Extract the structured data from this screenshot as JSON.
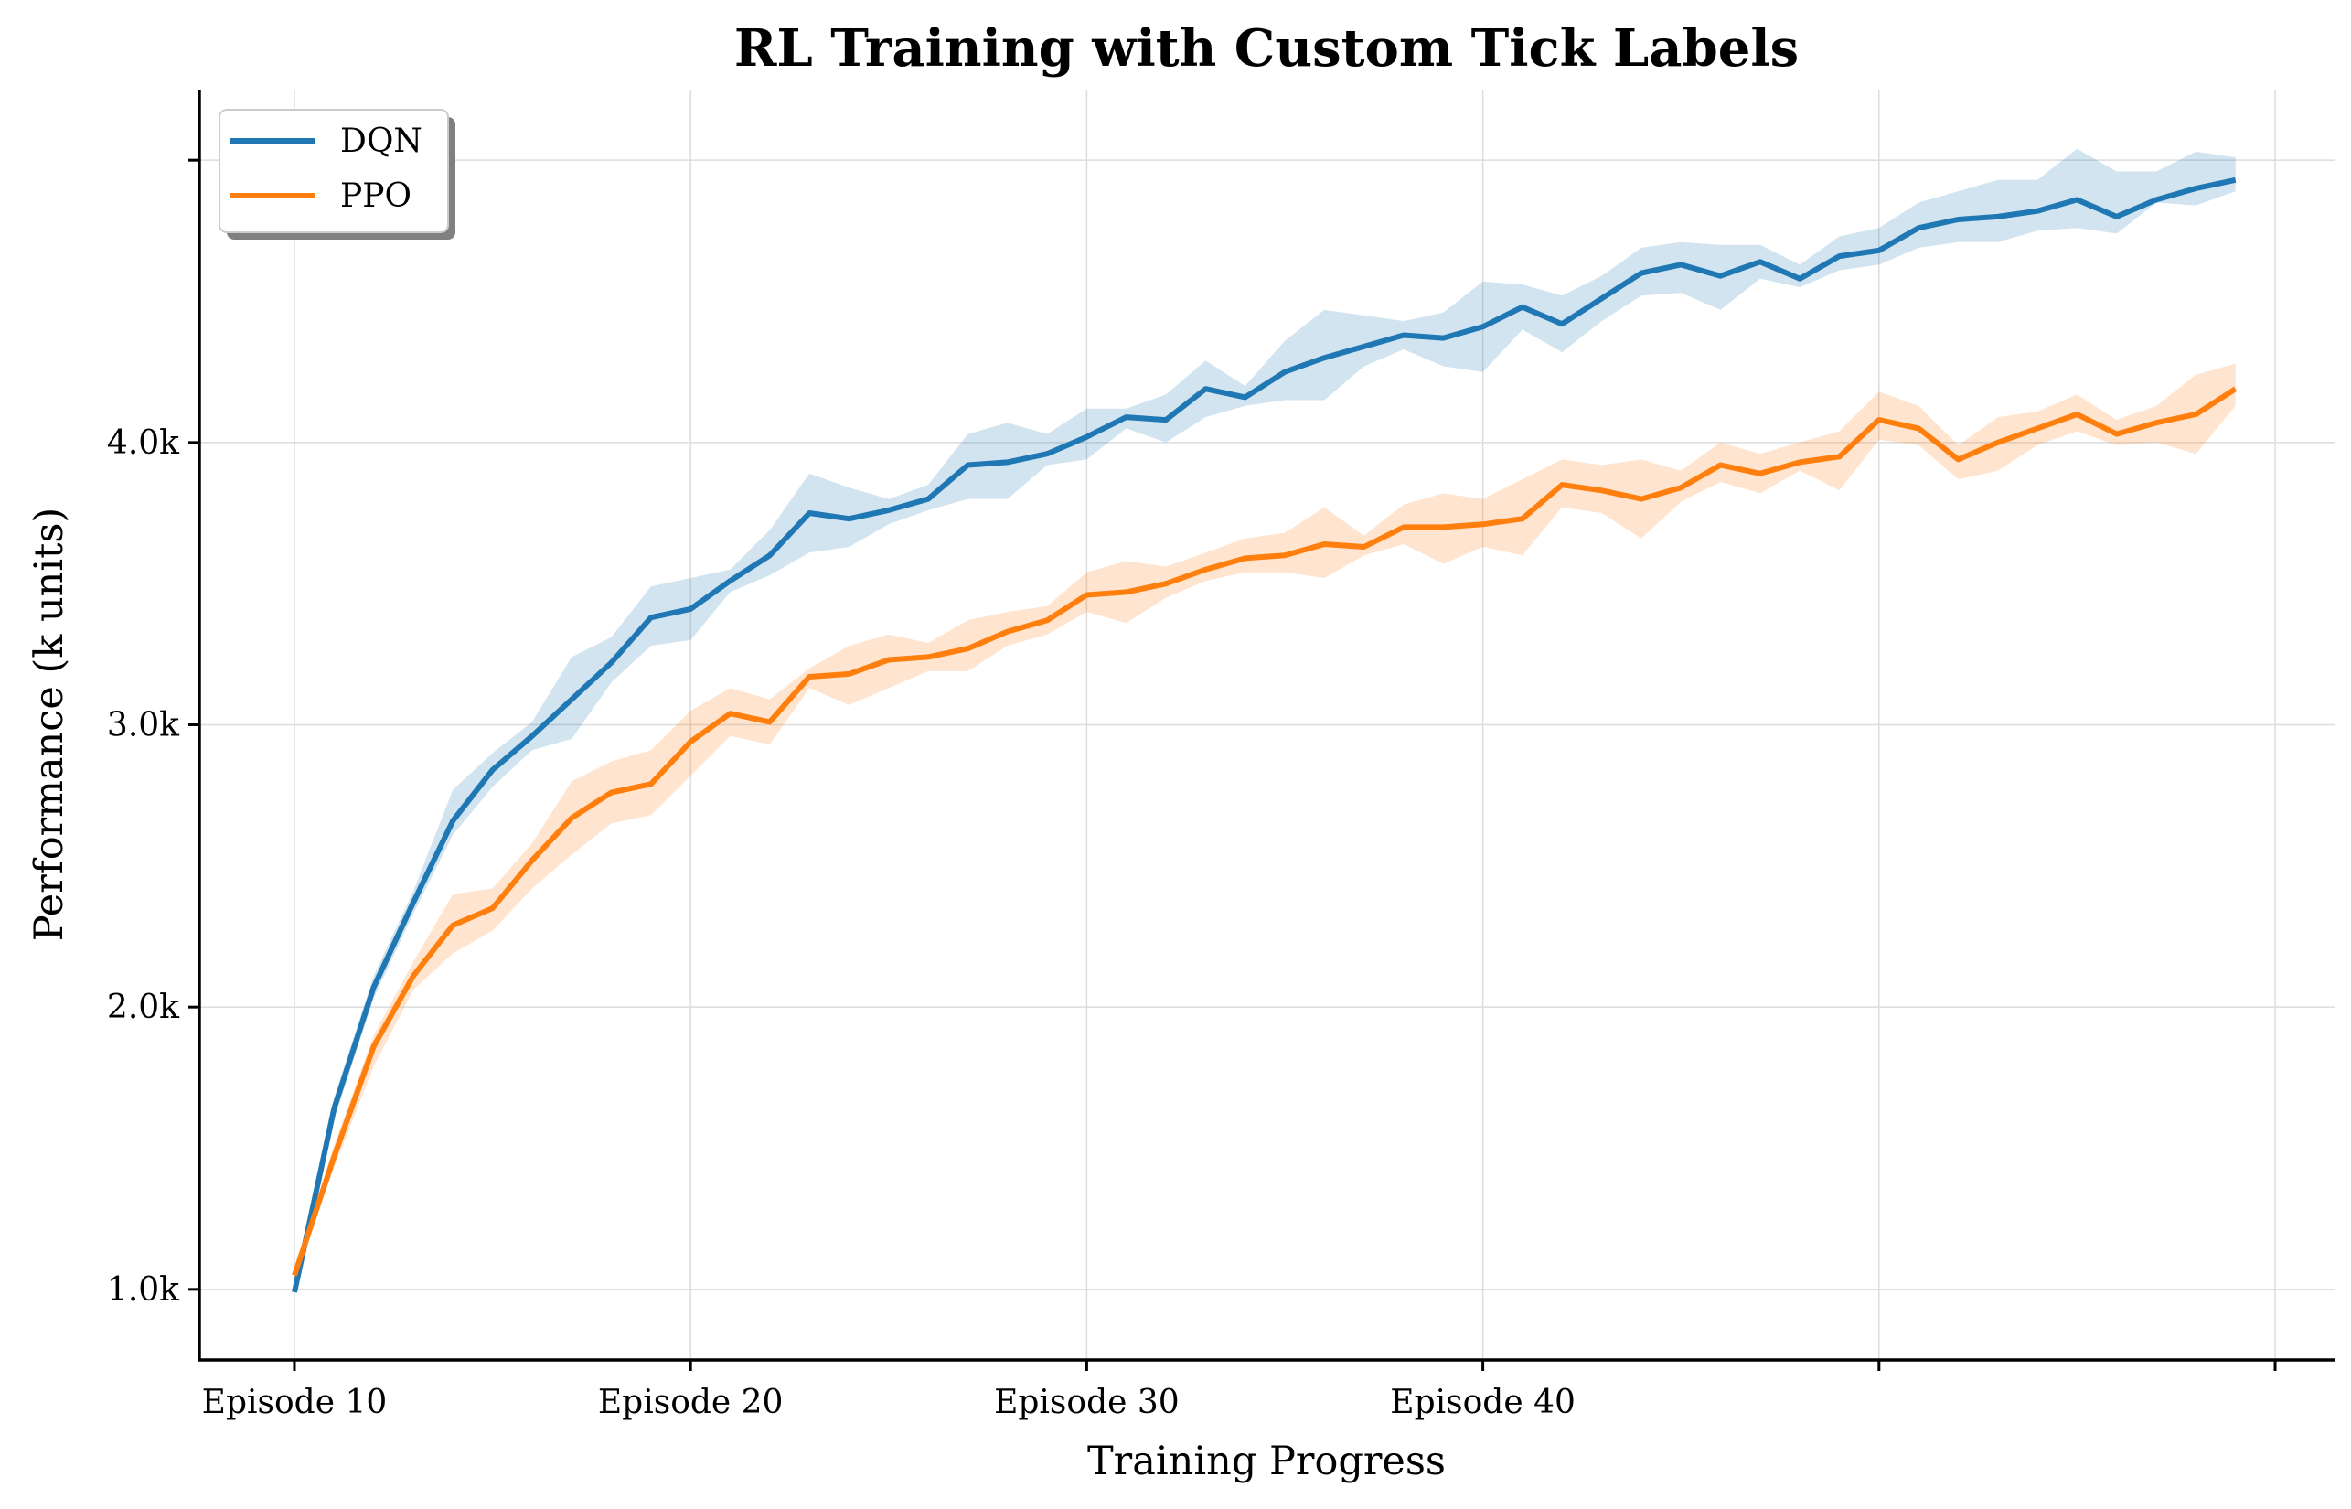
{
  "chart_data": {
    "type": "line",
    "title": "RL Training with Custom Tick Labels",
    "xlabel": "Training Progress",
    "ylabel": "Performance (k units)",
    "x_ticks": [
      {
        "value": 10,
        "label": "Episode 10"
      },
      {
        "value": 20,
        "label": "Episode 20"
      },
      {
        "value": 30,
        "label": "Episode 30"
      },
      {
        "value": 40,
        "label": "Episode 40"
      },
      {
        "value": 50,
        "label": ""
      },
      {
        "value": 60,
        "label": ""
      }
    ],
    "y_ticks": [
      {
        "value": 1000,
        "label": "1.0k"
      },
      {
        "value": 2000,
        "label": "2.0k"
      },
      {
        "value": 3000,
        "label": "3.0k"
      },
      {
        "value": 4000,
        "label": "4.0k"
      },
      {
        "value": 5000,
        "label": ""
      }
    ],
    "xlim": [
      7.6,
      61.5
    ],
    "ylim": [
      750,
      5250
    ],
    "grid": true,
    "legend_position": "top-left",
    "x": [
      10,
      11,
      12,
      13,
      14,
      15,
      16,
      17,
      18,
      19,
      20,
      21,
      22,
      23,
      24,
      25,
      26,
      27,
      28,
      29,
      30,
      31,
      32,
      33,
      34,
      35,
      36,
      37,
      38,
      39,
      40,
      41,
      42,
      43,
      44,
      45,
      46,
      47,
      48,
      49,
      50,
      51,
      52,
      53,
      54,
      55,
      56,
      57,
      58,
      59
    ],
    "series": [
      {
        "name": "DQN",
        "color": "#1f77b4",
        "values": [
          990,
          1640,
          2070,
          2370,
          2660,
          2840,
          2960,
          3090,
          3220,
          3380,
          3410,
          3510,
          3600,
          3750,
          3730,
          3760,
          3800,
          3920,
          3930,
          3960,
          4020,
          4090,
          4080,
          4190,
          4160,
          4250,
          4300,
          4340,
          4380,
          4370,
          4410,
          4480,
          4420,
          4510,
          4600,
          4630,
          4590,
          4640,
          4580,
          4660,
          4680,
          4760,
          4790,
          4800,
          4820,
          4860,
          4800,
          4860,
          4900,
          4930
        ],
        "band_lower": [
          980,
          1600,
          2030,
          2330,
          2610,
          2780,
          2910,
          2950,
          3150,
          3280,
          3300,
          3470,
          3530,
          3610,
          3630,
          3710,
          3760,
          3800,
          3800,
          3920,
          3940,
          4050,
          4000,
          4090,
          4130,
          4150,
          4150,
          4270,
          4330,
          4270,
          4250,
          4400,
          4320,
          4430,
          4520,
          4530,
          4470,
          4580,
          4550,
          4610,
          4630,
          4690,
          4710,
          4710,
          4750,
          4760,
          4740,
          4850,
          4840,
          4890
        ],
        "band_upper": [
          1000,
          1680,
          2110,
          2410,
          2770,
          2900,
          3010,
          3240,
          3310,
          3490,
          3520,
          3550,
          3690,
          3890,
          3840,
          3800,
          3850,
          4030,
          4070,
          4030,
          4120,
          4120,
          4170,
          4290,
          4200,
          4360,
          4470,
          4450,
          4430,
          4460,
          4570,
          4560,
          4520,
          4590,
          4690,
          4710,
          4700,
          4700,
          4630,
          4730,
          4760,
          4850,
          4890,
          4930,
          4930,
          5040,
          4960,
          4960,
          5030,
          5010
        ]
      },
      {
        "name": "PPO",
        "color": "#ff7f0e",
        "values": [
          1050,
          1470,
          1860,
          2110,
          2290,
          2350,
          2520,
          2670,
          2760,
          2790,
          2940,
          3040,
          3010,
          3170,
          3180,
          3230,
          3240,
          3270,
          3330,
          3370,
          3460,
          3470,
          3500,
          3550,
          3590,
          3600,
          3640,
          3630,
          3700,
          3700,
          3710,
          3730,
          3850,
          3830,
          3800,
          3840,
          3920,
          3890,
          3930,
          3950,
          4080,
          4050,
          3940,
          4000,
          4050,
          4100,
          4030,
          4070,
          4100,
          4190
        ],
        "band_lower": [
          1040,
          1430,
          1790,
          2060,
          2190,
          2270,
          2420,
          2540,
          2650,
          2680,
          2820,
          2960,
          2930,
          3130,
          3070,
          3130,
          3190,
          3190,
          3280,
          3320,
          3400,
          3360,
          3450,
          3510,
          3540,
          3540,
          3520,
          3600,
          3640,
          3570,
          3630,
          3600,
          3770,
          3750,
          3660,
          3790,
          3860,
          3820,
          3900,
          3830,
          4010,
          3990,
          3870,
          3900,
          3990,
          4040,
          3990,
          4000,
          3960,
          4130
        ],
        "band_upper": [
          1060,
          1510,
          1900,
          2160,
          2400,
          2420,
          2580,
          2800,
          2870,
          2910,
          3050,
          3130,
          3090,
          3200,
          3280,
          3320,
          3290,
          3370,
          3400,
          3420,
          3540,
          3580,
          3560,
          3610,
          3660,
          3680,
          3770,
          3670,
          3780,
          3820,
          3800,
          3870,
          3940,
          3920,
          3940,
          3900,
          4000,
          3960,
          4000,
          4040,
          4180,
          4130,
          3990,
          4090,
          4110,
          4170,
          4080,
          4130,
          4240,
          4280
        ]
      }
    ]
  }
}
